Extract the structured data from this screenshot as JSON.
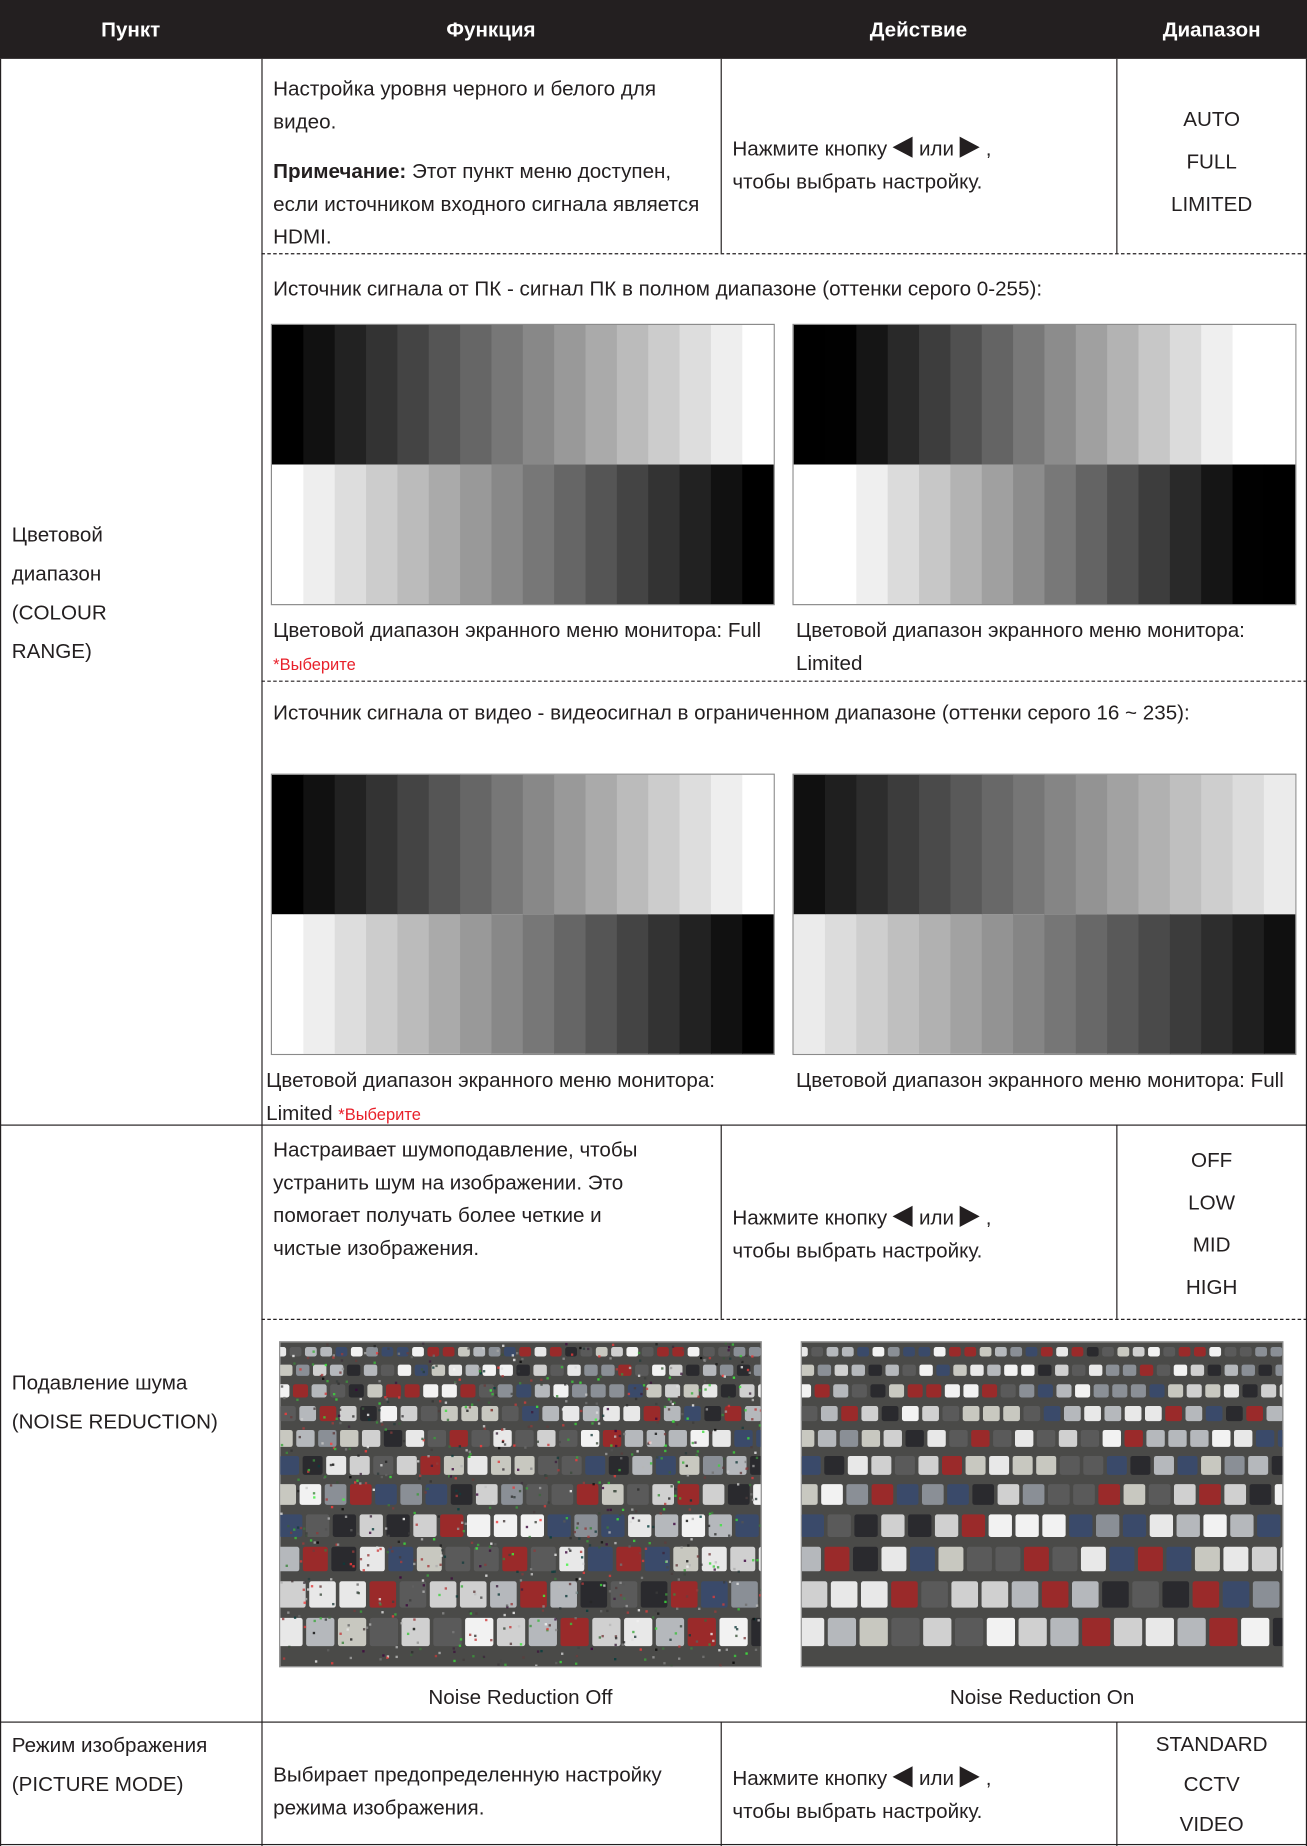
{
  "header": [
    "Пункт",
    "Функция",
    "Действие",
    "Диапазон"
  ],
  "rows": [
    {
      "item": "Цветовой диапазон (COLOUR RANGE)",
      "function": "Настройка уровня черного и белого для видео.",
      "note_label": "Примечание:",
      "note": "Этот пункт меню доступен, если источником входного сигнала является HDMI.",
      "action": {
        "press": "Нажмите кнопку",
        "or": "или",
        "comma": ",",
        "then": "чтобы выбрать настройку."
      },
      "range": [
        "AUTO",
        "FULL",
        "LIMITED"
      ],
      "pc_source": "Источник сигнала от ПК - сигнал ПК в полном диапазоне (оттенки серого 0-255):",
      "pc_captions": [
        {
          "text": "Цветовой диапазон экранного меню монитора: Full",
          "tag": "*Выберите"
        },
        {
          "text": "Цветовой диапазон экранного меню монитора: Limited"
        }
      ],
      "video_source": "Источник сигнала от видео - видеосигнал в ограниченном диапазоне (оттенки серого 16 ~ 235):",
      "video_captions": [
        {
          "text": "Цветовой диапазон экранного меню монитора: Limited",
          "tag": "*Выберите"
        },
        {
          "text": "Цветовой диапазон экранного меню монитора: Full"
        }
      ]
    },
    {
      "item": "Подавление шума (NOISE REDUCTION)",
      "function": "Настраивает шумоподавление, чтобы устранить шум на изображении. Это помогает получать более четкие и чистые изображения.",
      "action": {
        "press": "Нажмите кнопку",
        "or": "или",
        "comma": ",",
        "then": "чтобы выбрать настройку."
      },
      "range": [
        "OFF",
        "LOW",
        "MID",
        "HIGH"
      ],
      "captions": [
        "Noise Reduction Off",
        "Noise Reduction On"
      ]
    },
    {
      "item": "Режим изображения (PICTURE MODE)",
      "function": "Выбирает предопределенную настройку режима изображения.",
      "action": {
        "press": "Нажмите кнопку",
        "or": "или",
        "comma": ",",
        "then": "чтобы выбрать настройку."
      },
      "range": [
        "STANDARD",
        "CCTV",
        "VIDEO"
      ]
    }
  ]
}
